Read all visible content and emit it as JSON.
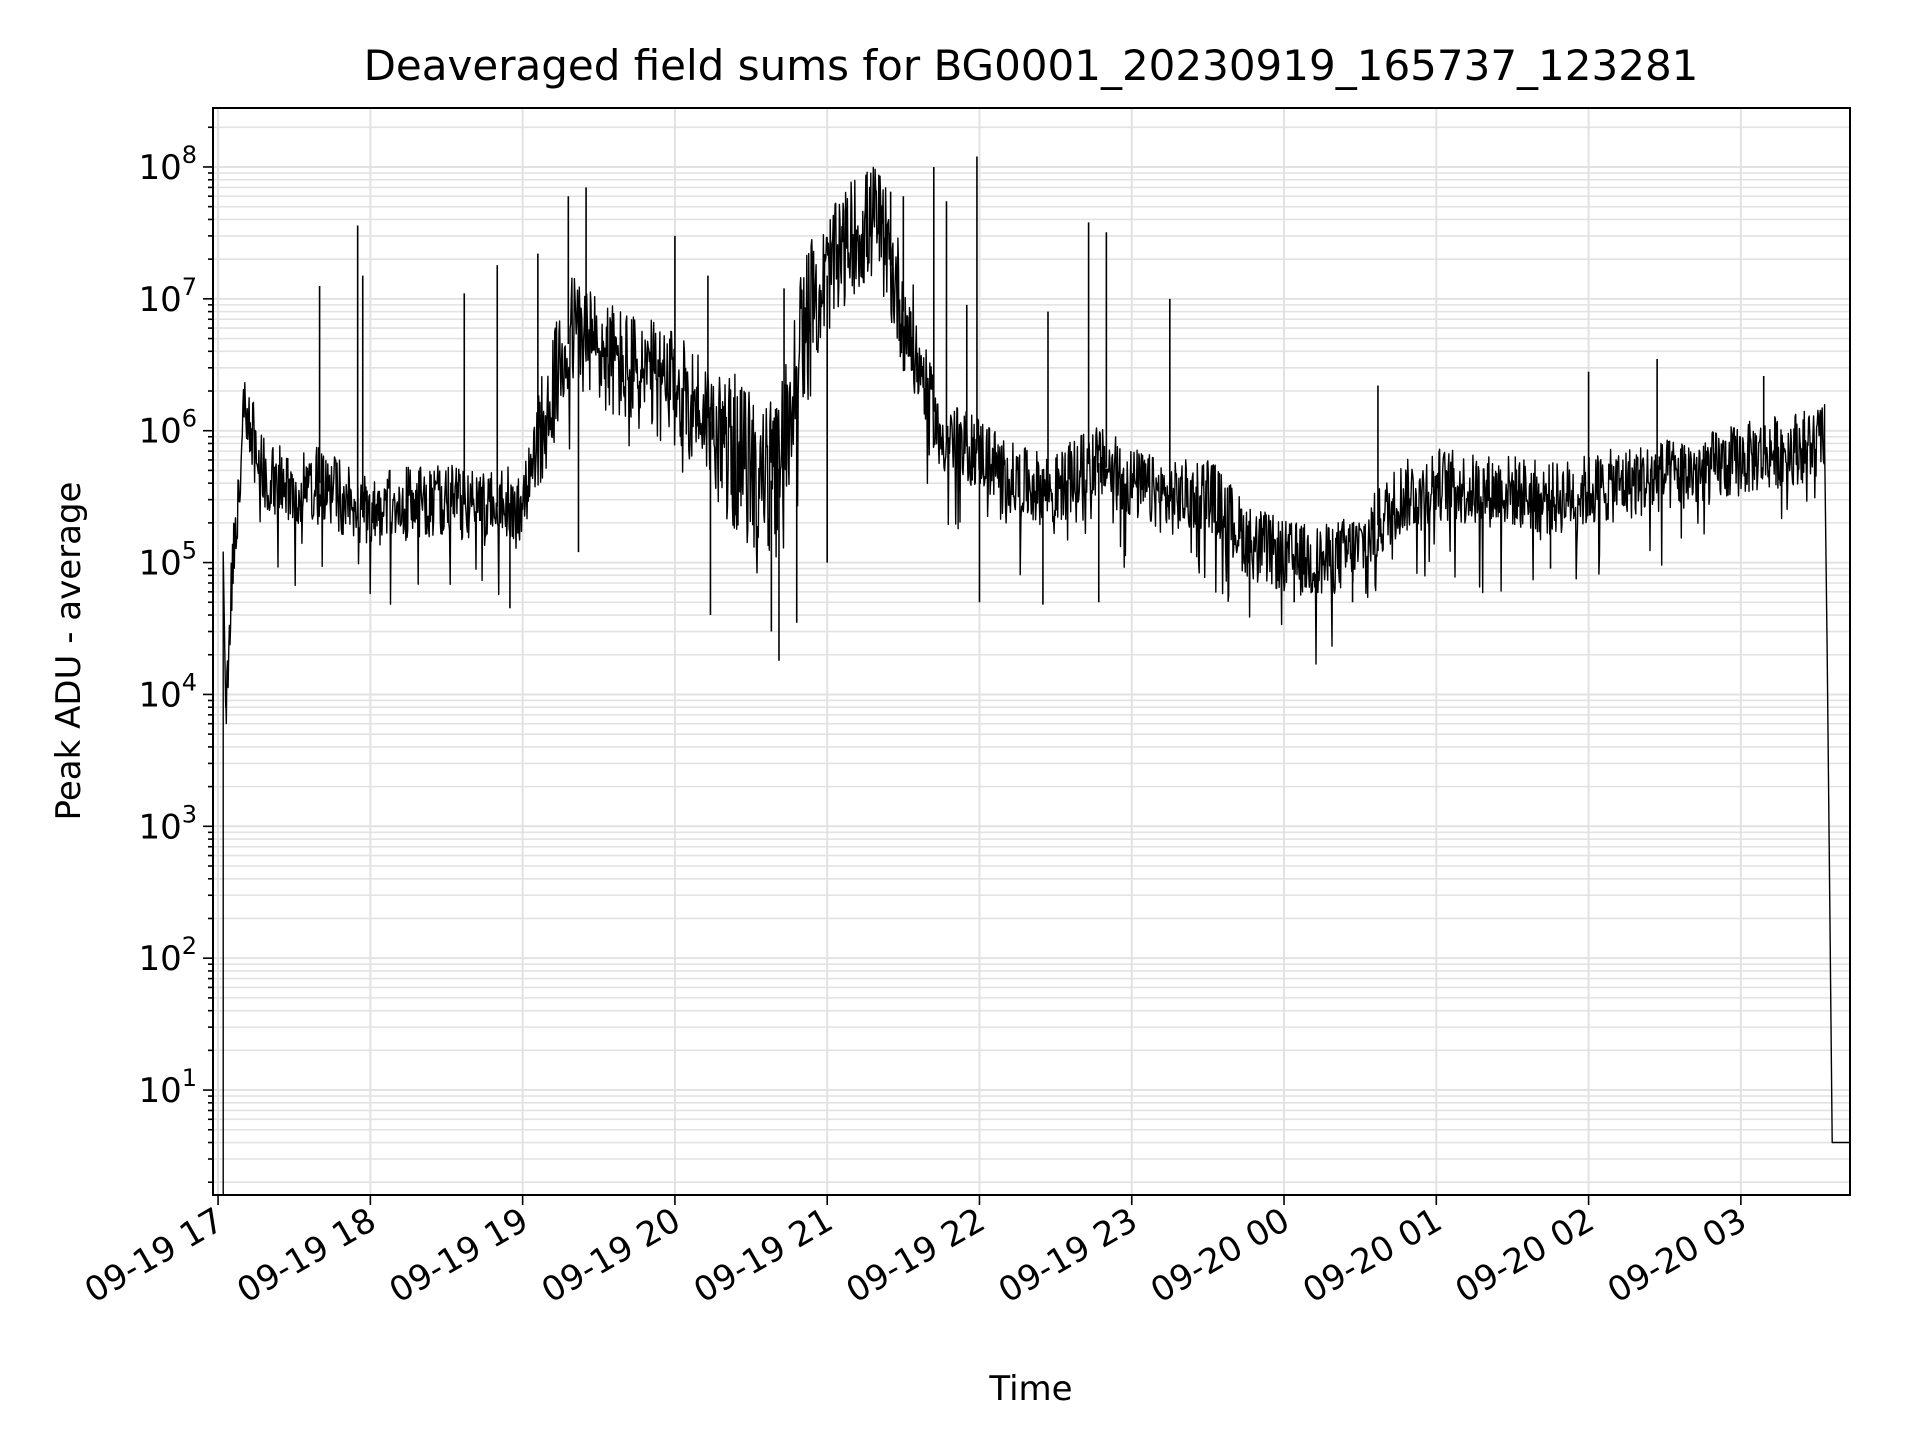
{
  "chart_data": {
    "type": "line",
    "title": "Deaveraged field sums for BG0001_20230919_165737_123281",
    "xlabel": "Time",
    "ylabel": "Peak ADU - average",
    "yscale": "log",
    "grid": true,
    "legend": "none",
    "xlim": [
      "2023-09-19 16:58",
      "2023-09-20 03:43"
    ],
    "ylim": [
      1.6,
      280000000
    ],
    "x_ticks": [
      "09-19 17",
      "09-19 18",
      "09-19 19",
      "09-19 20",
      "09-19 21",
      "09-19 22",
      "09-19 23",
      "09-20 00",
      "09-20 01",
      "09-20 02",
      "09-20 03"
    ],
    "y_ticks": [
      {
        "base": "10",
        "exp": "1"
      },
      {
        "base": "10",
        "exp": "2"
      },
      {
        "base": "10",
        "exp": "3"
      },
      {
        "base": "10",
        "exp": "4"
      },
      {
        "base": "10",
        "exp": "5"
      },
      {
        "base": "10",
        "exp": "6"
      },
      {
        "base": "10",
        "exp": "7"
      },
      {
        "base": "10",
        "exp": "8"
      }
    ],
    "line_color": "#000000",
    "series": [
      {
        "x": [
          "2023-09-19 16:58",
          "2023-09-19 17:02",
          "2023-09-19 17:03",
          "2023-09-19 17:05",
          "2023-09-19 17:08",
          "2023-09-19 17:10",
          "2023-09-19 17:13",
          "2023-09-19 17:16",
          "2023-09-19 17:20",
          "2023-09-19 17:30",
          "2023-09-19 17:40",
          "2023-09-19 17:50",
          "2023-09-19 18:00",
          "2023-09-19 18:15",
          "2023-09-19 18:30",
          "2023-09-19 18:45",
          "2023-09-19 19:00",
          "2023-09-19 19:10",
          "2023-09-19 19:20",
          "2023-09-19 19:30",
          "2023-09-19 19:40",
          "2023-09-19 19:50",
          "2023-09-19 20:00",
          "2023-09-19 20:10",
          "2023-09-19 20:20",
          "2023-09-19 20:30",
          "2023-09-19 20:40",
          "2023-09-19 20:50",
          "2023-09-19 21:00",
          "2023-09-19 21:10",
          "2023-09-19 21:20",
          "2023-09-19 21:30",
          "2023-09-19 21:45",
          "2023-09-19 22:00",
          "2023-09-19 22:15",
          "2023-09-19 22:30",
          "2023-09-19 22:45",
          "2023-09-19 23:00",
          "2023-09-19 23:15",
          "2023-09-19 23:30",
          "2023-09-19 23:45",
          "2023-09-20 00:00",
          "2023-09-20 00:15",
          "2023-09-20 00:30",
          "2023-09-20 00:45",
          "2023-09-20 01:00",
          "2023-09-20 01:15",
          "2023-09-20 01:30",
          "2023-09-20 01:45",
          "2023-09-20 02:00",
          "2023-09-20 02:15",
          "2023-09-20 02:30",
          "2023-09-20 02:45",
          "2023-09-20 03:00",
          "2023-09-20 03:15",
          "2023-09-20 03:30",
          "2023-09-20 03:34",
          "2023-09-20 03:36",
          "2023-09-20 03:43"
        ],
        "y": [
          1.6,
          120000,
          8000,
          60000,
          300000,
          1500000,
          1100000,
          500000,
          450000,
          350000,
          400000,
          300000,
          250000,
          280000,
          300000,
          250000,
          300000,
          1500000,
          6000000,
          4000000,
          3000000,
          2500000,
          2000000,
          1500000,
          800000,
          500000,
          400000,
          5000000,
          15000000,
          30000000,
          40000000,
          8000000,
          900000,
          700000,
          400000,
          350000,
          600000,
          400000,
          300000,
          350000,
          150000,
          110000,
          100000,
          130000,
          300000,
          400000,
          350000,
          350000,
          300000,
          350000,
          400000,
          450000,
          500000,
          600000,
          700000,
          800000,
          1000000,
          4,
          4
        ]
      }
    ],
    "spikes": [
      {
        "x": "2023-09-19 17:40",
        "y": 12500000
      },
      {
        "x": "2023-09-19 17:55",
        "y": 36000000
      },
      {
        "x": "2023-09-19 17:57",
        "y": 15000000
      },
      {
        "x": "2023-09-19 18:37",
        "y": 11000000
      },
      {
        "x": "2023-09-19 18:50",
        "y": 18000000
      },
      {
        "x": "2023-09-19 19:06",
        "y": 22000000
      },
      {
        "x": "2023-09-19 19:18",
        "y": 60000000
      },
      {
        "x": "2023-09-19 19:25",
        "y": 70000000
      },
      {
        "x": "2023-09-19 20:00",
        "y": 30000000
      },
      {
        "x": "2023-09-19 20:13",
        "y": 15000000
      },
      {
        "x": "2023-09-19 20:43",
        "y": 12000000
      },
      {
        "x": "2023-09-19 21:25",
        "y": 65000000
      },
      {
        "x": "2023-09-19 21:30",
        "y": 60000000
      },
      {
        "x": "2023-09-19 21:42",
        "y": 100000000
      },
      {
        "x": "2023-09-19 21:47",
        "y": 55000000
      },
      {
        "x": "2023-09-19 21:55",
        "y": 9000000
      },
      {
        "x": "2023-09-19 21:59",
        "y": 120000000
      },
      {
        "x": "2023-09-19 22:27",
        "y": 8000000
      },
      {
        "x": "2023-09-19 22:43",
        "y": 38000000
      },
      {
        "x": "2023-09-19 22:50",
        "y": 32000000
      },
      {
        "x": "2023-09-19 23:15",
        "y": 10000000
      },
      {
        "x": "2023-09-20 00:37",
        "y": 2200000
      },
      {
        "x": "2023-09-20 02:00",
        "y": 2800000
      },
      {
        "x": "2023-09-20 02:27",
        "y": 3500000
      },
      {
        "x": "2023-09-20 03:09",
        "y": 2600000
      }
    ],
    "dips": [
      {
        "x": "2023-09-19 18:55",
        "y": 45000
      },
      {
        "x": "2023-09-19 19:22",
        "y": 120000
      },
      {
        "x": "2023-09-19 20:14",
        "y": 40000
      },
      {
        "x": "2023-09-19 20:38",
        "y": 30000
      },
      {
        "x": "2023-09-19 20:41",
        "y": 18000
      },
      {
        "x": "2023-09-19 20:48",
        "y": 35000
      },
      {
        "x": "2023-09-19 21:00",
        "y": 100000
      },
      {
        "x": "2023-09-19 22:00",
        "y": 50000
      },
      {
        "x": "2023-09-19 22:25",
        "y": 48000
      },
      {
        "x": "2023-09-19 22:47",
        "y": 50000
      },
      {
        "x": "2023-09-20 00:04",
        "y": 50000
      },
      {
        "x": "2023-09-20 00:27",
        "y": 50000
      },
      {
        "x": "2023-09-20 01:45",
        "y": 90000
      }
    ]
  }
}
